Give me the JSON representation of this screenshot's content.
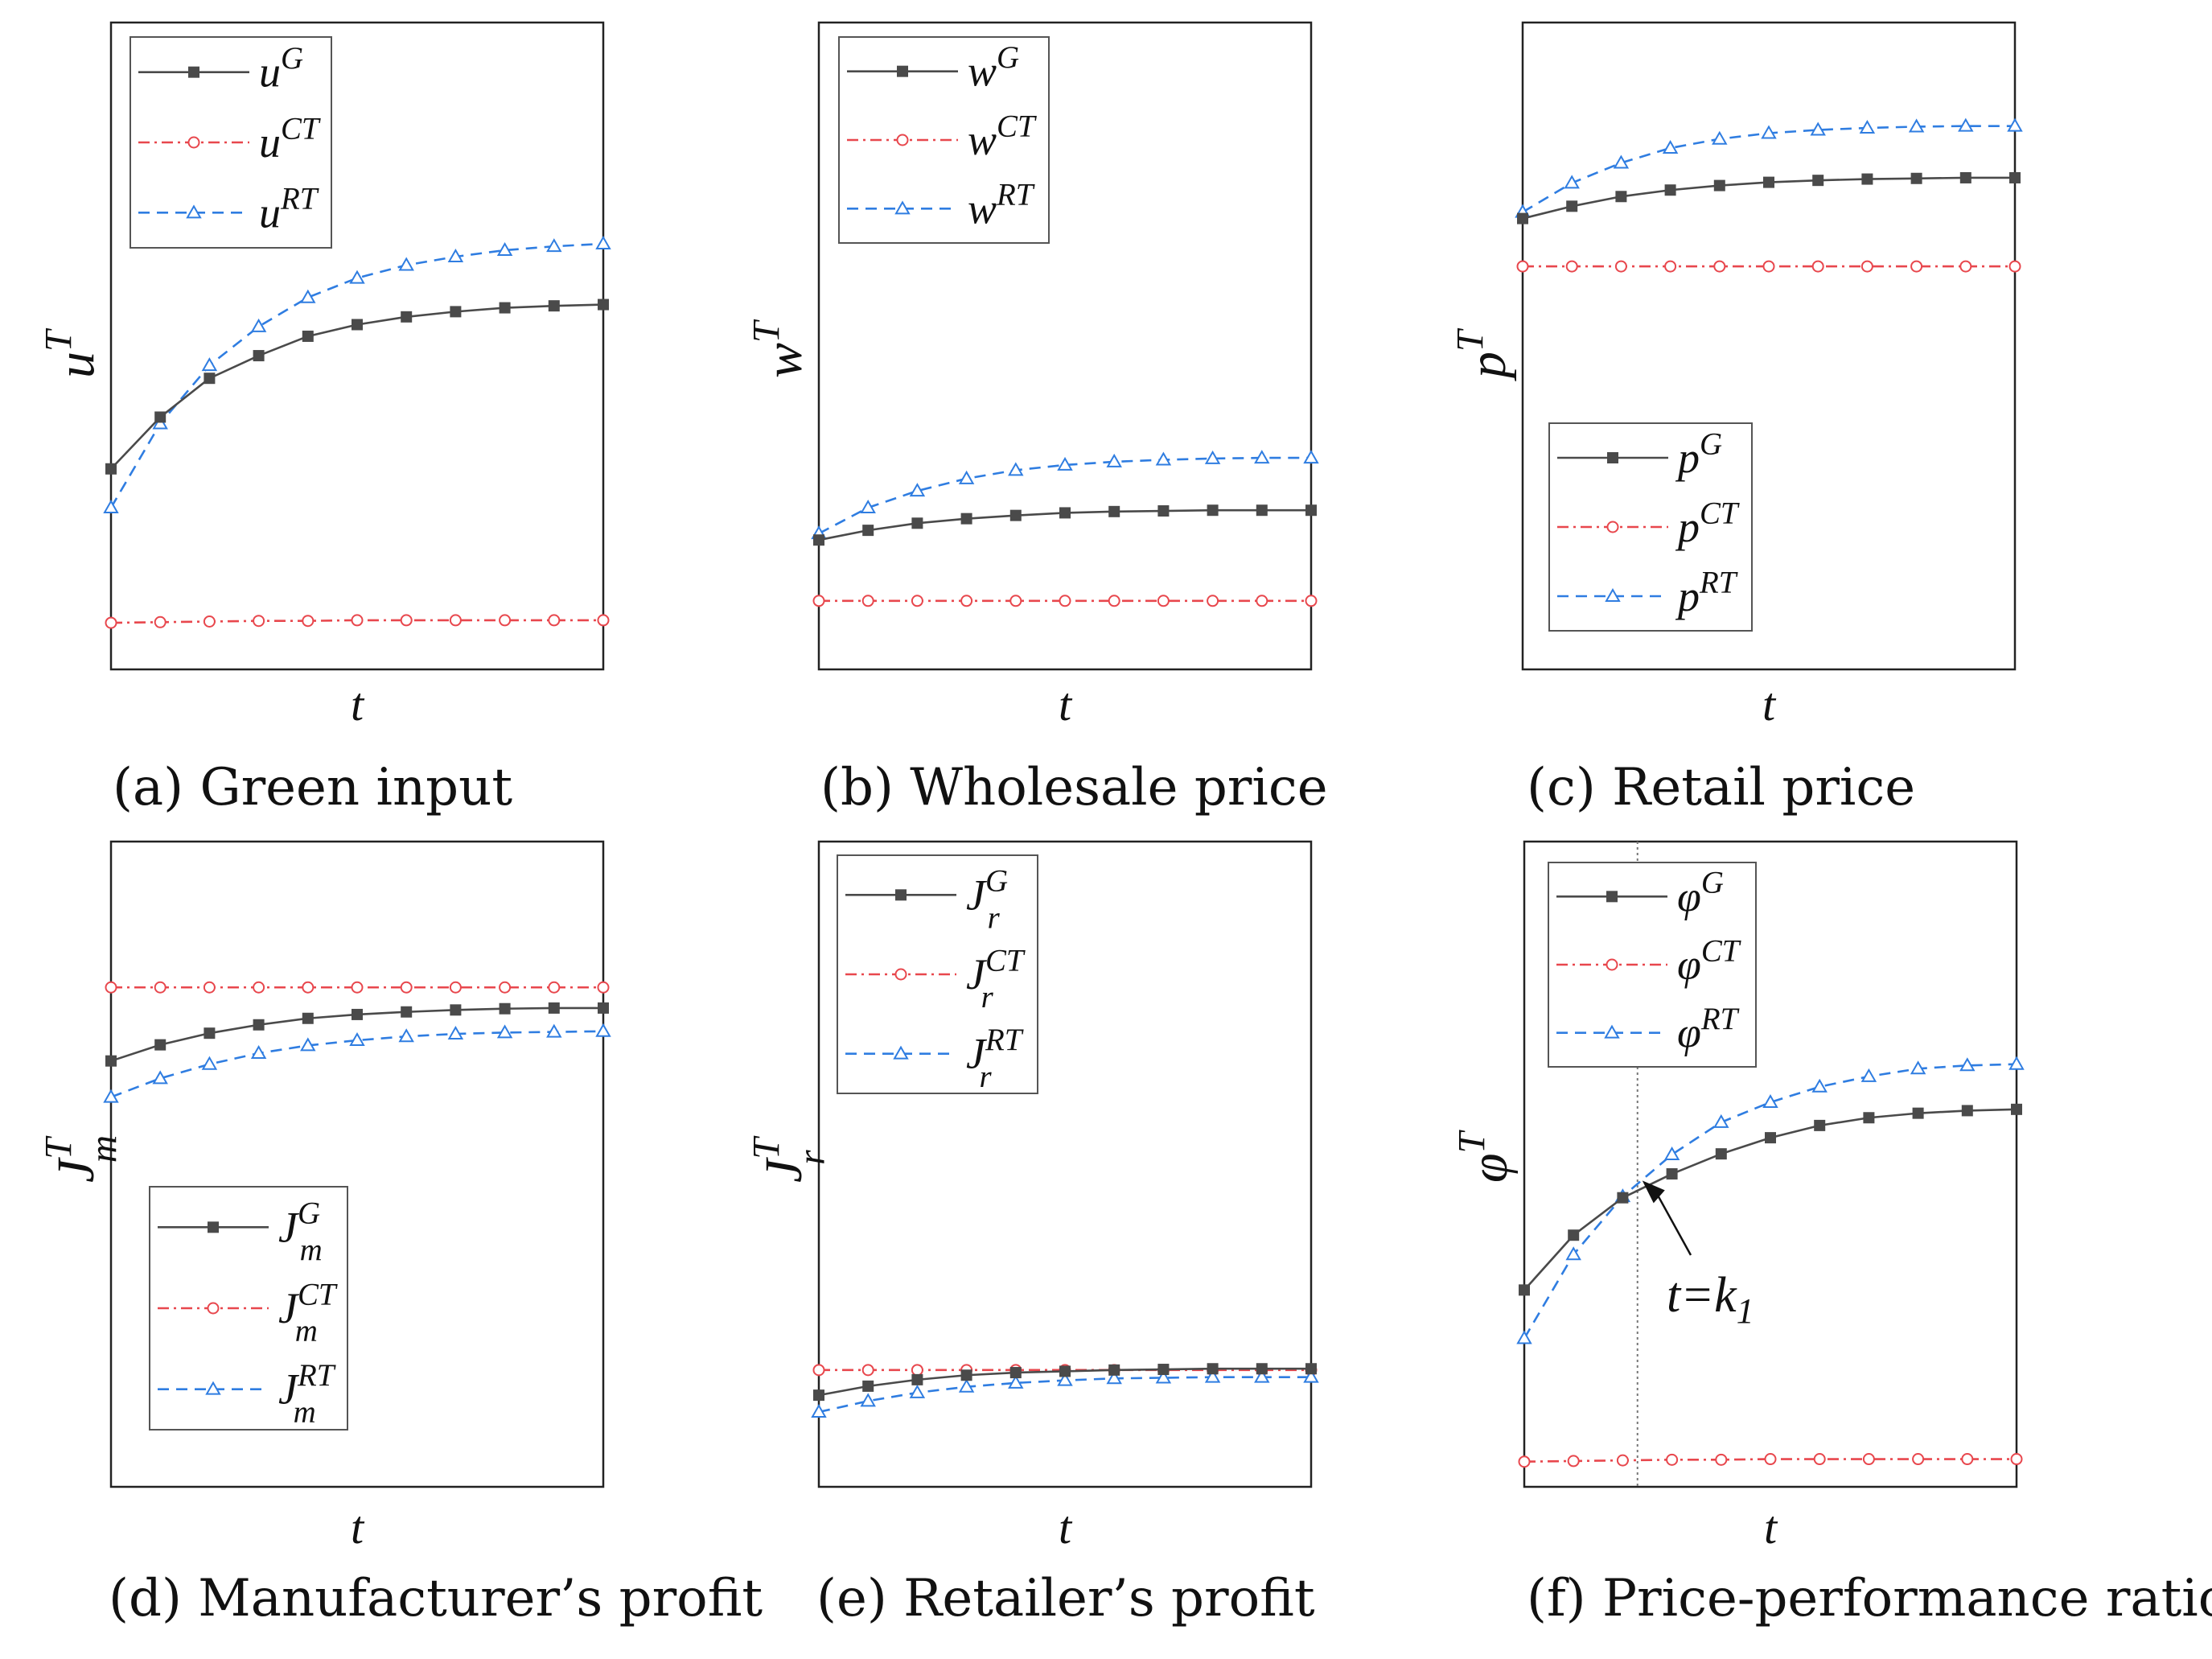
{
  "colors": {
    "G": "#4a4a4a",
    "CT": "#e8474d",
    "RT": "#2f7de1",
    "frame": "#222222"
  },
  "chart_data": [
    {
      "type": "line",
      "id": "a",
      "caption": "(a) Green input",
      "xlabel": "t",
      "ylabel": {
        "base": "u",
        "sup": "T",
        "sub": ""
      },
      "legend_position": "top-left",
      "legend": [
        {
          "key": "G",
          "base": "u",
          "sup": "G",
          "sub": ""
        },
        {
          "key": "CT",
          "base": "u",
          "sup": "CT",
          "sub": ""
        },
        {
          "key": "RT",
          "base": "u",
          "sup": "RT",
          "sub": ""
        }
      ],
      "ylim": [
        0,
        100
      ],
      "series": [
        {
          "key": "G",
          "values": [
            31,
            39,
            45,
            48.5,
            51.5,
            53.3,
            54.5,
            55.3,
            55.9,
            56.2,
            56.4
          ]
        },
        {
          "key": "CT",
          "values": [
            7.2,
            7.3,
            7.4,
            7.5,
            7.5,
            7.6,
            7.6,
            7.6,
            7.6,
            7.6,
            7.6
          ]
        },
        {
          "key": "RT",
          "values": [
            25,
            38,
            47,
            53,
            57.5,
            60.5,
            62.5,
            63.8,
            64.8,
            65.4,
            65.8
          ]
        }
      ]
    },
    {
      "type": "line",
      "id": "b",
      "caption": "(b) Wholesale price",
      "xlabel": "t",
      "ylabel": {
        "base": "w",
        "sup": "T",
        "sub": ""
      },
      "legend_position": "top-left",
      "legend": [
        {
          "key": "G",
          "base": "w",
          "sup": "G",
          "sub": ""
        },
        {
          "key": "CT",
          "base": "w",
          "sup": "CT",
          "sub": ""
        },
        {
          "key": "RT",
          "base": "w",
          "sup": "RT",
          "sub": ""
        }
      ],
      "ylim": [
        0,
        100
      ],
      "series": [
        {
          "key": "G",
          "values": [
            20,
            21.5,
            22.6,
            23.3,
            23.8,
            24.2,
            24.4,
            24.5,
            24.6,
            24.6,
            24.6
          ]
        },
        {
          "key": "CT",
          "values": [
            10.6,
            10.6,
            10.6,
            10.6,
            10.6,
            10.6,
            10.6,
            10.6,
            10.6,
            10.6,
            10.6
          ]
        },
        {
          "key": "RT",
          "values": [
            21,
            25,
            27.6,
            29.5,
            30.8,
            31.6,
            32.1,
            32.4,
            32.6,
            32.7,
            32.7
          ]
        }
      ]
    },
    {
      "type": "line",
      "id": "c",
      "caption": "(c) Retail price",
      "xlabel": "t",
      "ylabel": {
        "base": "p",
        "sup": "T",
        "sub": ""
      },
      "legend_position": "bottom-left",
      "legend": [
        {
          "key": "G",
          "base": "p",
          "sup": "G",
          "sub": ""
        },
        {
          "key": "CT",
          "base": "p",
          "sup": "CT",
          "sub": ""
        },
        {
          "key": "RT",
          "base": "p",
          "sup": "RT",
          "sub": ""
        }
      ],
      "ylim": [
        0,
        100
      ],
      "series": [
        {
          "key": "G",
          "values": [
            69.7,
            71.6,
            73.1,
            74.1,
            74.8,
            75.3,
            75.6,
            75.8,
            75.9,
            76,
            76
          ]
        },
        {
          "key": "CT",
          "values": [
            62.3,
            62.3,
            62.3,
            62.3,
            62.3,
            62.3,
            62.3,
            62.3,
            62.3,
            62.3,
            62.3
          ]
        },
        {
          "key": "RT",
          "values": [
            70.7,
            75.2,
            78.3,
            80.6,
            82,
            82.9,
            83.4,
            83.7,
            83.9,
            84,
            84
          ]
        }
      ]
    },
    {
      "type": "line",
      "id": "d",
      "caption": "(d) Manufacturer’s profit",
      "xlabel": "t",
      "ylabel": {
        "base": "J",
        "sup": "T",
        "sub": "m"
      },
      "legend_position": "bottom-left",
      "legend": [
        {
          "key": "G",
          "base": "J",
          "sup": "G",
          "sub": "m"
        },
        {
          "key": "CT",
          "base": "J",
          "sup": "CT",
          "sub": "m"
        },
        {
          "key": "RT",
          "base": "J",
          "sup": "RT",
          "sub": "m"
        }
      ],
      "ylim": [
        0,
        100
      ],
      "series": [
        {
          "key": "G",
          "values": [
            66,
            68.5,
            70.3,
            71.6,
            72.6,
            73.2,
            73.6,
            73.9,
            74.1,
            74.2,
            74.2
          ]
        },
        {
          "key": "CT",
          "values": [
            77.4,
            77.4,
            77.4,
            77.4,
            77.4,
            77.4,
            77.4,
            77.4,
            77.4,
            77.4,
            77.4
          ]
        },
        {
          "key": "RT",
          "values": [
            60.4,
            63.3,
            65.5,
            67.2,
            68.4,
            69.2,
            69.8,
            70.2,
            70.4,
            70.5,
            70.6
          ]
        }
      ]
    },
    {
      "type": "line",
      "id": "e",
      "caption": "(e) Retailer’s profit",
      "xlabel": "t",
      "ylabel": {
        "base": "J",
        "sup": "T",
        "sub": "r"
      },
      "legend_position": "top-left",
      "legend": [
        {
          "key": "G",
          "base": "J",
          "sup": "G",
          "sub": "r"
        },
        {
          "key": "CT",
          "base": "J",
          "sup": "CT",
          "sub": "r"
        },
        {
          "key": "RT",
          "base": "J",
          "sup": "RT",
          "sub": "r"
        }
      ],
      "ylim": [
        0,
        100
      ],
      "series": [
        {
          "key": "G",
          "values": [
            14.2,
            15.6,
            16.6,
            17.3,
            17.7,
            17.9,
            18.1,
            18.2,
            18.3,
            18.3,
            18.3
          ]
        },
        {
          "key": "CT",
          "values": [
            18.1,
            18.1,
            18.1,
            18.1,
            18.1,
            18.1,
            18.1,
            18.1,
            18.1,
            18.1,
            18.1
          ]
        },
        {
          "key": "RT",
          "values": [
            11.6,
            13.3,
            14.6,
            15.5,
            16.1,
            16.5,
            16.8,
            16.9,
            17,
            17,
            17
          ]
        }
      ]
    },
    {
      "type": "line",
      "id": "f",
      "caption": "(f) Price-performance ratio",
      "xlabel": "t",
      "ylabel": {
        "base": "φ",
        "sup": "T",
        "sub": ""
      },
      "legend_position": "top-left",
      "legend": [
        {
          "key": "G",
          "base": "φ",
          "sup": "G",
          "sub": ""
        },
        {
          "key": "CT",
          "base": "φ",
          "sup": "CT",
          "sub": ""
        },
        {
          "key": "RT",
          "base": "φ",
          "sup": "RT",
          "sub": ""
        }
      ],
      "ylim": [
        0,
        100
      ],
      "series": [
        {
          "key": "G",
          "values": [
            30.5,
            39,
            44.8,
            48.5,
            51.6,
            54.1,
            56,
            57.2,
            57.9,
            58.3,
            58.5
          ]
        },
        {
          "key": "CT",
          "values": [
            3.9,
            4,
            4.1,
            4.2,
            4.2,
            4.3,
            4.3,
            4.3,
            4.3,
            4.3,
            4.3
          ]
        },
        {
          "key": "RT",
          "values": [
            23,
            36,
            45,
            51.5,
            56.5,
            59.6,
            62,
            63.6,
            64.8,
            65.3,
            65.5
          ]
        }
      ],
      "vline_x": 2.3,
      "annotation": {
        "prefix": "t=k",
        "sub": "1"
      }
    }
  ]
}
